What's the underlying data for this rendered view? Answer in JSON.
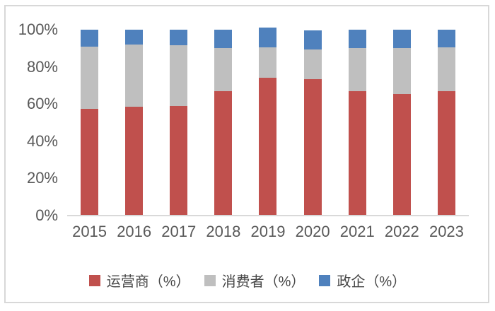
{
  "chart_data": {
    "type": "bar",
    "stacked": true,
    "percent_stacked": true,
    "title": "",
    "xlabel": "",
    "ylabel": "",
    "categories": [
      "2015",
      "2016",
      "2017",
      "2018",
      "2019",
      "2020",
      "2021",
      "2022",
      "2023"
    ],
    "series": [
      {
        "name": "运营商（%）",
        "color": "#c0504d",
        "values": [
          57.5,
          58.5,
          59,
          67,
          74,
          73.5,
          67,
          65.5,
          67
        ]
      },
      {
        "name": "消费者（%）",
        "color": "#bfbfbf",
        "values": [
          33.5,
          33.5,
          32.5,
          23,
          16.5,
          16,
          23,
          24.5,
          23.5
        ]
      },
      {
        "name": "政企（%）",
        "color": "#4f81bd",
        "values": [
          9,
          8,
          8.5,
          10,
          10.5,
          10,
          10,
          10,
          9.5
        ]
      }
    ],
    "ylim": [
      0,
      100
    ],
    "yticks": [
      "0%",
      "20%",
      "40%",
      "60%",
      "80%",
      "100%"
    ],
    "ytick_values": [
      0,
      20,
      40,
      60,
      80,
      100
    ],
    "grid": false,
    "legend_position": "bottom"
  },
  "style": {
    "axis_line_color": "#d9d9d9",
    "frame_border_color": "#d8d8d8",
    "tick_label_color": "#595959",
    "background": "#ffffff"
  }
}
